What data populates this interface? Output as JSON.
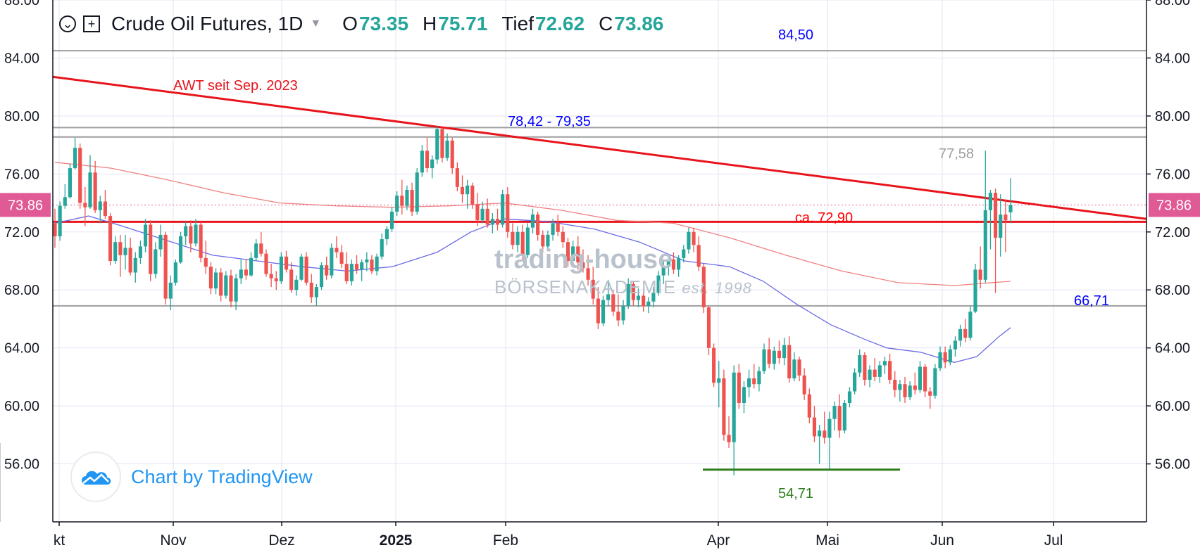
{
  "legend": {
    "symbol": "Crude Oil Futures, 1D",
    "open_label": "O",
    "open": "73.35",
    "high_label": "H",
    "high": "75.71",
    "low_label": "Tief",
    "low": "72.62",
    "close_label": "C",
    "close": "73.86"
  },
  "branding": {
    "chart_by": "Chart by TradingView"
  },
  "watermark": {
    "line1": "trading-house",
    "line2": "BÖRSENAKADEMIE",
    "line3": "est. 1998"
  },
  "colors": {
    "up": "#26a69a",
    "down": "#ef5350",
    "price_badge": "#e05a96",
    "trend": "#e8141c",
    "blue": "#0000ff",
    "green": "#2e7d1a",
    "gray_label": "#9e9e9e"
  },
  "chart_data": {
    "type": "candlestick",
    "y_range": [
      52.0,
      88.0
    ],
    "y_ticks": [
      "88.00",
      "84.00",
      "80.00",
      "76.00",
      "72.00",
      "68.00",
      "64.00",
      "60.00",
      "56.00"
    ],
    "x_ticks": [
      "kt",
      "Nov",
      "Dez",
      "2025",
      "Feb",
      "Apr",
      "Mai",
      "Jun",
      "Jul"
    ],
    "last_price": "73.86",
    "horizontal_levels": [
      {
        "value": 84.5,
        "label": "84,50",
        "label_color": "blue",
        "line": "gray"
      },
      {
        "value": 79.2,
        "label": "78,42 - 79,35",
        "label_color": "blue",
        "line": "gray"
      },
      {
        "value": 78.55,
        "label": "",
        "line": "gray"
      },
      {
        "value": 72.7,
        "label": "ca. 72,90",
        "label_color": "red",
        "line": "red"
      },
      {
        "value": 66.9,
        "label": "66,71",
        "label_color": "blue",
        "line": "gray"
      }
    ],
    "support_segment": {
      "value": 55.6,
      "label": "54,71"
    },
    "annotations": [
      {
        "text": "AWT seit Sep. 2023",
        "color": "red"
      },
      {
        "text": "77,58",
        "color": "gray"
      }
    ],
    "trendline": {
      "name": "AWT seit Sep. 2023",
      "start": 82.7,
      "end": 72.9
    },
    "ma_fast_anchors": [
      [
        0,
        72.6
      ],
      [
        0.03,
        73.1
      ],
      [
        0.06,
        72.4
      ],
      [
        0.1,
        71.4
      ],
      [
        0.14,
        70.4
      ],
      [
        0.18,
        70.0
      ],
      [
        0.22,
        69.6
      ],
      [
        0.26,
        69.3
      ],
      [
        0.3,
        69.6
      ],
      [
        0.34,
        70.6
      ],
      [
        0.37,
        72.0
      ],
      [
        0.4,
        72.9
      ],
      [
        0.44,
        72.7
      ],
      [
        0.48,
        72.2
      ],
      [
        0.52,
        71.3
      ],
      [
        0.56,
        70.0
      ],
      [
        0.6,
        69.6
      ],
      [
        0.63,
        68.6
      ],
      [
        0.66,
        67.0
      ],
      [
        0.69,
        65.6
      ],
      [
        0.72,
        64.6
      ],
      [
        0.74,
        64.0
      ],
      [
        0.77,
        63.7
      ],
      [
        0.8,
        63.0
      ],
      [
        0.82,
        63.4
      ],
      [
        0.84,
        64.8
      ],
      [
        0.85,
        65.4
      ]
    ],
    "ma_slow_anchors": [
      [
        0,
        76.8
      ],
      [
        0.05,
        76.4
      ],
      [
        0.1,
        75.6
      ],
      [
        0.15,
        74.7
      ],
      [
        0.2,
        74.0
      ],
      [
        0.25,
        73.8
      ],
      [
        0.3,
        73.7
      ],
      [
        0.35,
        73.8
      ],
      [
        0.4,
        74.0
      ],
      [
        0.45,
        73.5
      ],
      [
        0.5,
        72.8
      ],
      [
        0.55,
        72.6
      ],
      [
        0.6,
        71.6
      ],
      [
        0.65,
        70.4
      ],
      [
        0.7,
        69.3
      ],
      [
        0.75,
        68.5
      ],
      [
        0.8,
        68.3
      ],
      [
        0.85,
        68.6
      ]
    ],
    "candles": [
      [
        72.6,
        73.6,
        70.9,
        71.7
      ],
      [
        71.7,
        74.1,
        71.4,
        73.8
      ],
      [
        73.8,
        75.3,
        73.6,
        74.4
      ],
      [
        74.4,
        76.7,
        74.3,
        76.4
      ],
      [
        76.4,
        78.5,
        76.3,
        77.8
      ],
      [
        77.8,
        78.1,
        73.6,
        74.0
      ],
      [
        74.0,
        75.1,
        72.4,
        73.7
      ],
      [
        73.7,
        77.3,
        73.6,
        76.1
      ],
      [
        76.1,
        76.9,
        73.3,
        73.5
      ],
      [
        73.5,
        74.5,
        72.6,
        74.1
      ],
      [
        74.1,
        74.9,
        72.9,
        73.1
      ],
      [
        73.1,
        73.3,
        69.7,
        70.0
      ],
      [
        70.0,
        71.7,
        69.8,
        71.3
      ],
      [
        71.3,
        71.8,
        68.9,
        70.4
      ],
      [
        70.4,
        71.8,
        69.4,
        70.9
      ],
      [
        70.9,
        71.6,
        69.0,
        69.2
      ],
      [
        69.2,
        70.6,
        68.5,
        70.2
      ],
      [
        70.2,
        71.4,
        69.8,
        71.0
      ],
      [
        71.0,
        72.9,
        70.6,
        72.5
      ],
      [
        72.5,
        72.8,
        68.6,
        69.1
      ],
      [
        69.1,
        71.3,
        68.8,
        70.8
      ],
      [
        70.8,
        72.5,
        70.3,
        71.8
      ],
      [
        71.8,
        72.0,
        67.0,
        67.4
      ],
      [
        67.4,
        69.0,
        66.6,
        68.5
      ],
      [
        68.5,
        70.1,
        68.3,
        69.9
      ],
      [
        69.9,
        72.0,
        69.8,
        71.7
      ],
      [
        71.7,
        72.7,
        71.1,
        72.4
      ],
      [
        72.4,
        72.8,
        70.6,
        71.2
      ],
      [
        71.2,
        72.9,
        71.0,
        72.5
      ],
      [
        72.5,
        72.7,
        69.9,
        70.2
      ],
      [
        70.2,
        71.4,
        69.1,
        69.6
      ],
      [
        69.6,
        69.9,
        67.7,
        68.1
      ],
      [
        68.1,
        69.5,
        67.7,
        69.2
      ],
      [
        69.2,
        69.5,
        67.2,
        67.6
      ],
      [
        67.6,
        69.3,
        67.4,
        69.0
      ],
      [
        69.0,
        69.4,
        66.8,
        67.2
      ],
      [
        67.2,
        69.1,
        66.6,
        68.8
      ],
      [
        68.8,
        70.1,
        68.4,
        69.4
      ],
      [
        69.4,
        70.1,
        68.7,
        69.0
      ],
      [
        69.0,
        70.6,
        68.9,
        70.2
      ],
      [
        70.2,
        71.5,
        70.0,
        71.2
      ],
      [
        71.2,
        72.0,
        70.3,
        70.5
      ],
      [
        70.5,
        70.8,
        68.9,
        69.1
      ],
      [
        69.1,
        69.8,
        68.2,
        68.8
      ],
      [
        68.8,
        69.3,
        68.0,
        68.6
      ],
      [
        68.6,
        70.6,
        68.4,
        70.3
      ],
      [
        70.3,
        70.7,
        69.2,
        69.4
      ],
      [
        69.4,
        69.9,
        67.8,
        68.0
      ],
      [
        68.0,
        69.0,
        67.6,
        68.7
      ],
      [
        68.7,
        70.5,
        68.6,
        70.3
      ],
      [
        70.3,
        70.6,
        68.3,
        68.5
      ],
      [
        68.5,
        69.1,
        67.1,
        67.5
      ],
      [
        67.5,
        68.4,
        66.9,
        68.2
      ],
      [
        68.2,
        69.9,
        68.0,
        69.7
      ],
      [
        69.7,
        70.3,
        68.7,
        69.0
      ],
      [
        69.0,
        71.2,
        68.8,
        70.9
      ],
      [
        70.9,
        71.7,
        70.2,
        70.6
      ],
      [
        70.6,
        71.1,
        69.5,
        69.8
      ],
      [
        69.8,
        70.6,
        68.4,
        68.6
      ],
      [
        68.6,
        70.1,
        68.3,
        69.8
      ],
      [
        69.8,
        70.4,
        69.1,
        69.4
      ],
      [
        69.4,
        70.1,
        68.6,
        69.9
      ],
      [
        69.9,
        70.6,
        69.3,
        70.1
      ],
      [
        70.1,
        70.4,
        69.1,
        69.3
      ],
      [
        69.3,
        70.5,
        69.0,
        70.3
      ],
      [
        70.3,
        71.9,
        70.1,
        71.5
      ],
      [
        71.5,
        72.4,
        71.1,
        72.2
      ],
      [
        72.2,
        73.7,
        72.0,
        73.4
      ],
      [
        73.4,
        74.8,
        73.1,
        74.5
      ],
      [
        74.5,
        75.6,
        73.2,
        73.8
      ],
      [
        73.8,
        75.2,
        73.5,
        74.9
      ],
      [
        74.9,
        75.4,
        73.1,
        73.4
      ],
      [
        73.4,
        76.4,
        73.2,
        76.1
      ],
      [
        76.1,
        78.0,
        75.8,
        77.6
      ],
      [
        77.6,
        78.5,
        76.1,
        76.4
      ],
      [
        76.4,
        77.3,
        75.7,
        77.0
      ],
      [
        77.0,
        79.3,
        76.7,
        79.1
      ],
      [
        79.1,
        79.2,
        76.8,
        77.1
      ],
      [
        77.1,
        78.8,
        76.9,
        78.3
      ],
      [
        78.3,
        78.5,
        76.0,
        76.4
      ],
      [
        76.4,
        76.8,
        74.8,
        75.1
      ],
      [
        75.1,
        75.9,
        74.0,
        74.6
      ],
      [
        74.6,
        75.6,
        73.6,
        75.2
      ],
      [
        75.2,
        75.4,
        73.6,
        73.9
      ],
      [
        73.9,
        74.7,
        72.4,
        72.8
      ],
      [
        72.8,
        74.1,
        72.6,
        73.6
      ],
      [
        73.6,
        74.3,
        72.3,
        72.5
      ],
      [
        72.5,
        73.3,
        71.9,
        72.9
      ],
      [
        72.9,
        73.6,
        72.1,
        72.5
      ],
      [
        72.5,
        74.9,
        72.3,
        74.6
      ],
      [
        74.6,
        75.1,
        71.6,
        72.0
      ],
      [
        72.0,
        72.6,
        70.8,
        71.1
      ],
      [
        71.1,
        72.4,
        70.6,
        72.0
      ],
      [
        72.0,
        72.5,
        70.0,
        70.4
      ],
      [
        70.4,
        72.6,
        70.2,
        72.3
      ],
      [
        72.3,
        73.6,
        71.9,
        73.2
      ],
      [
        73.2,
        73.4,
        71.4,
        71.8
      ],
      [
        71.8,
        72.1,
        70.6,
        71.0
      ],
      [
        71.0,
        72.1,
        70.7,
        71.8
      ],
      [
        71.8,
        72.9,
        71.4,
        72.6
      ],
      [
        72.6,
        73.2,
        71.7,
        72.0
      ],
      [
        72.0,
        72.4,
        70.9,
        71.3
      ],
      [
        71.3,
        71.6,
        69.6,
        70.0
      ],
      [
        70.0,
        71.4,
        69.6,
        71.0
      ],
      [
        71.0,
        71.7,
        69.4,
        69.9
      ],
      [
        69.9,
        70.8,
        69.2,
        69.5
      ],
      [
        69.5,
        70.4,
        68.3,
        68.7
      ],
      [
        68.7,
        69.6,
        67.0,
        67.4
      ],
      [
        67.4,
        68.2,
        65.3,
        65.7
      ],
      [
        65.7,
        67.6,
        65.5,
        67.3
      ],
      [
        67.3,
        68.7,
        66.9,
        67.7
      ],
      [
        67.7,
        68.0,
        66.2,
        66.5
      ],
      [
        66.5,
        67.7,
        65.5,
        65.9
      ],
      [
        65.9,
        67.3,
        65.6,
        66.9
      ],
      [
        66.9,
        68.8,
        66.7,
        68.4
      ],
      [
        68.4,
        68.6,
        66.9,
        67.3
      ],
      [
        67.3,
        68.1,
        66.8,
        67.6
      ],
      [
        67.6,
        68.1,
        66.5,
        66.9
      ],
      [
        66.9,
        67.5,
        66.4,
        67.2
      ],
      [
        67.2,
        68.2,
        66.8,
        67.8
      ],
      [
        67.8,
        69.3,
        67.6,
        69.0
      ],
      [
        69.0,
        70.0,
        68.4,
        69.6
      ],
      [
        69.6,
        70.3,
        69.0,
        70.1
      ],
      [
        70.1,
        70.6,
        69.1,
        69.4
      ],
      [
        69.4,
        70.4,
        68.9,
        70.2
      ],
      [
        70.2,
        71.1,
        69.9,
        70.8
      ],
      [
        70.8,
        72.3,
        70.5,
        72.0
      ],
      [
        72.0,
        72.3,
        70.6,
        71.1
      ],
      [
        71.1,
        71.7,
        69.3,
        69.6
      ],
      [
        69.6,
        69.8,
        66.4,
        66.8
      ],
      [
        66.8,
        66.9,
        63.5,
        64.0
      ],
      [
        64.0,
        64.3,
        61.3,
        61.6
      ],
      [
        61.6,
        63.1,
        59.9,
        61.9
      ],
      [
        61.9,
        62.5,
        57.6,
        58.0
      ],
      [
        58.0,
        59.3,
        57.1,
        57.5
      ],
      [
        57.5,
        62.8,
        55.2,
        62.3
      ],
      [
        62.3,
        62.9,
        59.8,
        60.2
      ],
      [
        60.2,
        61.7,
        59.5,
        61.3
      ],
      [
        61.3,
        62.5,
        60.6,
        61.9
      ],
      [
        61.9,
        62.9,
        61.2,
        61.5
      ],
      [
        61.5,
        62.7,
        61.0,
        62.4
      ],
      [
        62.4,
        64.3,
        62.2,
        63.9
      ],
      [
        63.9,
        64.7,
        62.6,
        62.9
      ],
      [
        62.9,
        64.1,
        62.5,
        63.8
      ],
      [
        63.8,
        64.5,
        62.9,
        63.3
      ],
      [
        63.3,
        64.7,
        62.8,
        64.2
      ],
      [
        64.2,
        64.8,
        61.6,
        61.9
      ],
      [
        61.9,
        63.7,
        61.7,
        63.2
      ],
      [
        63.2,
        63.4,
        61.7,
        62.1
      ],
      [
        62.1,
        62.6,
        60.4,
        60.8
      ],
      [
        60.8,
        61.2,
        58.8,
        59.2
      ],
      [
        59.2,
        60.0,
        57.5,
        57.9
      ],
      [
        57.9,
        58.7,
        56.0,
        58.3
      ],
      [
        58.3,
        59.6,
        57.4,
        57.8
      ],
      [
        57.8,
        59.6,
        55.6,
        59.1
      ],
      [
        59.1,
        60.3,
        58.3,
        60.0
      ],
      [
        60.0,
        60.8,
        57.8,
        58.3
      ],
      [
        58.3,
        60.4,
        58.1,
        60.2
      ],
      [
        60.2,
        61.3,
        59.9,
        61.0
      ],
      [
        61.0,
        62.6,
        60.8,
        62.3
      ],
      [
        62.3,
        63.9,
        62.0,
        63.5
      ],
      [
        63.5,
        63.7,
        61.4,
        61.8
      ],
      [
        61.8,
        62.8,
        61.3,
        62.5
      ],
      [
        62.5,
        63.3,
        61.7,
        62.0
      ],
      [
        62.0,
        63.1,
        61.6,
        62.8
      ],
      [
        62.8,
        63.4,
        62.2,
        63.1
      ],
      [
        63.1,
        63.6,
        61.5,
        61.8
      ],
      [
        61.8,
        62.4,
        60.6,
        61.1
      ],
      [
        61.1,
        61.8,
        60.3,
        61.5
      ],
      [
        61.5,
        62.0,
        60.2,
        60.6
      ],
      [
        60.6,
        61.7,
        60.4,
        61.4
      ],
      [
        61.4,
        62.3,
        60.8,
        61.1
      ],
      [
        61.1,
        63.1,
        60.9,
        62.7
      ],
      [
        62.7,
        62.9,
        60.6,
        61.0
      ],
      [
        61.0,
        61.3,
        59.8,
        60.7
      ],
      [
        60.7,
        62.9,
        60.5,
        62.6
      ],
      [
        62.6,
        64.1,
        62.4,
        63.7
      ],
      [
        63.7,
        64.1,
        62.6,
        63.0
      ],
      [
        63.0,
        64.2,
        62.8,
        63.9
      ],
      [
        63.9,
        64.8,
        63.4,
        64.5
      ],
      [
        64.5,
        65.6,
        64.1,
        65.3
      ],
      [
        65.3,
        66.0,
        64.4,
        64.7
      ],
      [
        64.7,
        66.9,
        64.5,
        66.5
      ],
      [
        66.5,
        69.8,
        66.4,
        69.4
      ],
      [
        69.4,
        71.0,
        68.1,
        68.7
      ],
      [
        68.7,
        77.6,
        68.5,
        73.5
      ],
      [
        73.5,
        74.9,
        70.8,
        74.7
      ],
      [
        74.7,
        75.0,
        67.8,
        71.6
      ],
      [
        71.6,
        74.6,
        70.3,
        73.2
      ],
      [
        73.2,
        74.2,
        70.6,
        72.8
      ],
      [
        73.35,
        75.71,
        72.62,
        73.86
      ]
    ]
  }
}
